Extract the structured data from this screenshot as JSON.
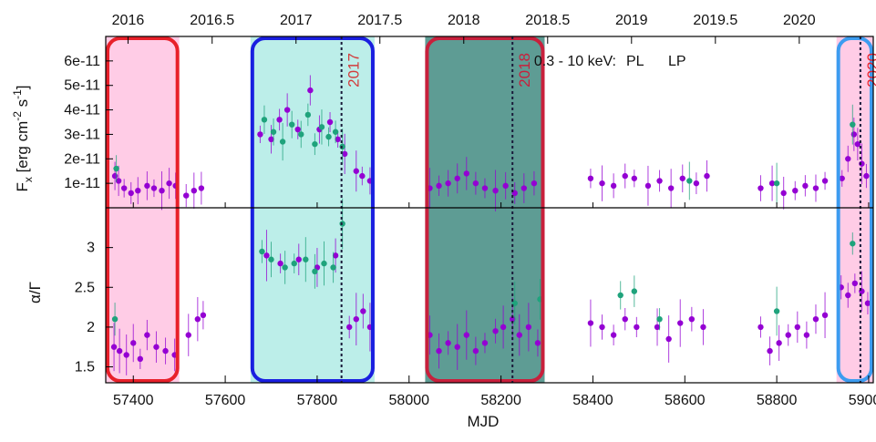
{
  "chart_data": [
    {
      "panel": "top",
      "type": "scatter",
      "ylabel_main": "F",
      "ylabel_sub": "x",
      "ylabel_unit": " [erg cm",
      "ylabel_exp1": "-2",
      "ylabel_mid": " s",
      "ylabel_exp2": "-1",
      "ylabel_end": "]",
      "ylim": [
        0,
        7e-11
      ],
      "yticks": [
        {
          "value": 1e-11,
          "label": "1e-11"
        },
        {
          "value": 2e-11,
          "label": "2e-11"
        },
        {
          "value": 3e-11,
          "label": "3e-11"
        },
        {
          "value": 4e-11,
          "label": "4e-11"
        },
        {
          "value": 5e-11,
          "label": "5e-11"
        },
        {
          "value": 6e-11,
          "label": "6e-11"
        }
      ],
      "legend": {
        "prefix": "0.3 - 10 keV:",
        "placement": "top-right"
      },
      "series": [
        {
          "name": "PL",
          "color": "#9400D3",
          "points": [
            [
              57360,
              1.3e-11
            ],
            [
              57368,
              1.1e-11
            ],
            [
              57380,
              8e-12
            ],
            [
              57395,
              6e-12
            ],
            [
              57410,
              7e-12
            ],
            [
              57430,
              9e-12
            ],
            [
              57445,
              8e-12
            ],
            [
              57462,
              7e-12
            ],
            [
              57478,
              1e-11
            ],
            [
              57492,
              9e-12
            ],
            [
              57515,
              5e-12
            ],
            [
              57532,
              7e-12
            ],
            [
              57548,
              8e-12
            ],
            [
              57676,
              3e-11
            ],
            [
              57700,
              2.8e-11
            ],
            [
              57718,
              3.6e-11
            ],
            [
              57735,
              4e-11
            ],
            [
              57758,
              3.2e-11
            ],
            [
              57785,
              4.8e-11
            ],
            [
              57805,
              3.2e-11
            ],
            [
              57828,
              3.5e-11
            ],
            [
              57845,
              2.8e-11
            ],
            [
              57860,
              2.2e-11
            ],
            [
              57885,
              1.5e-11
            ],
            [
              57898,
              1.3e-11
            ],
            [
              57915,
              1.1e-11
            ],
            [
              58045,
              8e-12
            ],
            [
              58065,
              9e-12
            ],
            [
              58085,
              1e-11
            ],
            [
              58105,
              1.2e-11
            ],
            [
              58125,
              1.4e-11
            ],
            [
              58145,
              1e-11
            ],
            [
              58165,
              8e-12
            ],
            [
              58188,
              7e-12
            ],
            [
              58210,
              9e-12
            ],
            [
              58230,
              6e-12
            ],
            [
              58250,
              8e-12
            ],
            [
              58272,
              1e-11
            ],
            [
              58395,
              1.2e-11
            ],
            [
              58420,
              1e-11
            ],
            [
              58445,
              9e-12
            ],
            [
              58470,
              1.3e-11
            ],
            [
              58490,
              1.2e-11
            ],
            [
              58520,
              9e-12
            ],
            [
              58545,
              1.1e-11
            ],
            [
              58570,
              8e-12
            ],
            [
              58595,
              1.2e-11
            ],
            [
              58625,
              1e-11
            ],
            [
              58648,
              1.3e-11
            ],
            [
              58765,
              8e-12
            ],
            [
              58790,
              1e-11
            ],
            [
              58815,
              6e-12
            ],
            [
              58840,
              7e-12
            ],
            [
              58862,
              9e-12
            ],
            [
              58885,
              8e-12
            ],
            [
              58905,
              1.1e-11
            ],
            [
              58942,
              1.2e-11
            ],
            [
              58955,
              2e-11
            ],
            [
              58968,
              3e-11
            ],
            [
              58976,
              2.6e-11
            ],
            [
              58985,
              1.8e-11
            ],
            [
              58995,
              1.3e-11
            ]
          ]
        },
        {
          "name": "LP",
          "color": "#1FA37C",
          "points": [
            [
              57363,
              1.6e-11
            ],
            [
              57685,
              3.6e-11
            ],
            [
              57705,
              3.1e-11
            ],
            [
              57725,
              2.7e-11
            ],
            [
              57745,
              3.4e-11
            ],
            [
              57765,
              3e-11
            ],
            [
              57780,
              3.8e-11
            ],
            [
              57795,
              2.6e-11
            ],
            [
              57810,
              3.3e-11
            ],
            [
              57825,
              2.9e-11
            ],
            [
              57840,
              3.1e-11
            ],
            [
              57855,
              2.5e-11
            ],
            [
              58610,
              1.1e-11
            ],
            [
              58800,
              1e-11
            ],
            [
              58965,
              3.4e-11
            ]
          ]
        }
      ]
    },
    {
      "panel": "bottom",
      "type": "scatter",
      "ylabel": "α/Γ",
      "ylim": [
        1.3,
        3.5
      ],
      "yticks": [
        {
          "value": 1.5,
          "label": "1.5"
        },
        {
          "value": 2,
          "label": "2"
        },
        {
          "value": 2.5,
          "label": "2.5"
        },
        {
          "value": 3,
          "label": "3"
        }
      ],
      "xlabel": "MJD",
      "xlim": [
        57340,
        59010
      ],
      "xticks": [
        {
          "value": 57400,
          "label": "57400"
        },
        {
          "value": 57600,
          "label": "57600"
        },
        {
          "value": 57800,
          "label": "57800"
        },
        {
          "value": 58000,
          "label": "58000"
        },
        {
          "value": 58200,
          "label": "58200"
        },
        {
          "value": 58400,
          "label": "58400"
        },
        {
          "value": 58600,
          "label": "58600"
        },
        {
          "value": 58800,
          "label": "58800"
        },
        {
          "value": 59000,
          "label": "59000"
        }
      ],
      "series": [
        {
          "name": "PL",
          "color": "#9400D3",
          "points": [
            [
              57358,
              1.75
            ],
            [
              57370,
              1.7
            ],
            [
              57385,
              1.65
            ],
            [
              57400,
              1.8
            ],
            [
              57415,
              1.6
            ],
            [
              57430,
              1.9
            ],
            [
              57450,
              1.75
            ],
            [
              57470,
              1.7
            ],
            [
              57490,
              1.65
            ],
            [
              57520,
              1.9
            ],
            [
              57540,
              2.1
            ],
            [
              57552,
              2.15
            ],
            [
              57690,
              2.9
            ],
            [
              57720,
              2.8
            ],
            [
              57760,
              2.85
            ],
            [
              57800,
              2.75
            ],
            [
              57840,
              2.9
            ],
            [
              57870,
              2.0
            ],
            [
              57885,
              2.1
            ],
            [
              57900,
              2.2
            ],
            [
              57915,
              2.0
            ],
            [
              58045,
              1.9
            ],
            [
              58065,
              1.7
            ],
            [
              58085,
              1.8
            ],
            [
              58105,
              1.75
            ],
            [
              58125,
              1.9
            ],
            [
              58145,
              1.7
            ],
            [
              58165,
              1.8
            ],
            [
              58188,
              1.95
            ],
            [
              58205,
              2.0
            ],
            [
              58225,
              2.1
            ],
            [
              58240,
              1.9
            ],
            [
              58260,
              2.0
            ],
            [
              58280,
              1.8
            ],
            [
              58395,
              2.05
            ],
            [
              58420,
              2.0
            ],
            [
              58445,
              1.9
            ],
            [
              58470,
              2.1
            ],
            [
              58495,
              2.0
            ],
            [
              58540,
              2.0
            ],
            [
              58565,
              1.85
            ],
            [
              58590,
              2.05
            ],
            [
              58615,
              2.1
            ],
            [
              58640,
              2.0
            ],
            [
              58765,
              2.0
            ],
            [
              58785,
              1.7
            ],
            [
              58805,
              1.8
            ],
            [
              58825,
              1.9
            ],
            [
              58845,
              2.0
            ],
            [
              58865,
              1.9
            ],
            [
              58885,
              2.1
            ],
            [
              58905,
              2.15
            ],
            [
              58940,
              2.5
            ],
            [
              58955,
              2.4
            ],
            [
              58970,
              2.55
            ],
            [
              58985,
              2.45
            ],
            [
              58998,
              2.3
            ]
          ]
        },
        {
          "name": "LP",
          "color": "#1FA37C",
          "points": [
            [
              57360,
              2.1
            ],
            [
              57680,
              2.95
            ],
            [
              57700,
              2.85
            ],
            [
              57730,
              2.75
            ],
            [
              57750,
              2.8
            ],
            [
              57775,
              2.85
            ],
            [
              57795,
              2.7
            ],
            [
              57815,
              2.8
            ],
            [
              57835,
              2.75
            ],
            [
              57855,
              3.3
            ],
            [
              58230,
              2.3
            ],
            [
              58285,
              2.35
            ],
            [
              58460,
              2.4
            ],
            [
              58490,
              2.45
            ],
            [
              58545,
              2.1
            ],
            [
              58800,
              2.2
            ],
            [
              58965,
              3.05
            ]
          ]
        }
      ]
    }
  ],
  "top_axis": {
    "ticks": [
      {
        "value": 57388.5,
        "label": "2016"
      },
      {
        "value": 57571.5,
        "label": "2016.5"
      },
      {
        "value": 57754,
        "label": "2017"
      },
      {
        "value": 57936.5,
        "label": "2017.5"
      },
      {
        "value": 58119,
        "label": "2018"
      },
      {
        "value": 58301.5,
        "label": "2018.5"
      },
      {
        "value": 58484,
        "label": "2019"
      },
      {
        "value": 58666.5,
        "label": "2019.5"
      },
      {
        "value": 58849,
        "label": "2020"
      }
    ]
  },
  "highlight_regions": [
    {
      "from": 57340,
      "to": 57500,
      "fill": "#FFCCE6",
      "border": "#E8202A",
      "label": ""
    },
    {
      "from": 57655,
      "to": 57925,
      "fill": "#BCEEE9",
      "border": "#1A1FE0",
      "label": "2017",
      "marker": 57853
    },
    {
      "from": 58035,
      "to": 58295,
      "fill": "#5E9C94",
      "border": "#C8203C",
      "label": "2018",
      "marker": 58225
    },
    {
      "from": 58930,
      "to": 59010,
      "fill": "#FFCCE6",
      "border": "#3C9CF0",
      "label": "2020",
      "marker": 58982
    }
  ],
  "label_colors": {
    "2017": "#D23C3C",
    "2018": "#C8203C",
    "2020": "#E8202A"
  }
}
